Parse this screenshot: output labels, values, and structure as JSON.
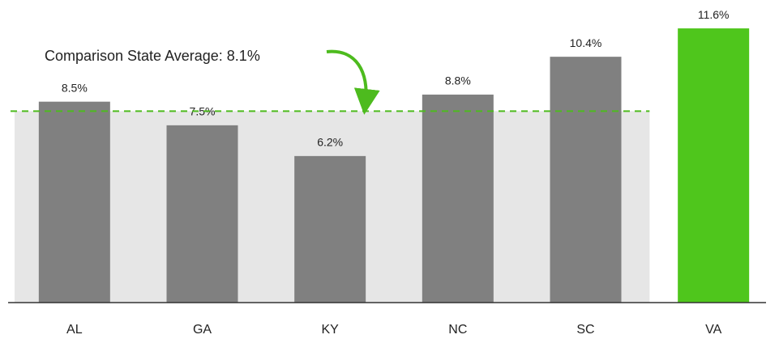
{
  "chart_data": {
    "type": "bar",
    "annotation": "Comparison State Average: 8.1%",
    "average": 8.1,
    "average_color": "#4dbb1e",
    "band_color": "#e6e6e6",
    "categories": [
      "AL",
      "GA",
      "KY",
      "NC",
      "SC",
      "VA"
    ],
    "values": [
      8.5,
      7.5,
      6.2,
      8.8,
      10.4,
      11.6
    ],
    "value_labels": [
      "8.5%",
      "7.5%",
      "6.2%",
      "8.8%",
      "10.4%",
      "11.6%"
    ],
    "colors": [
      "#808080",
      "#808080",
      "#808080",
      "#808080",
      "#808080",
      "#4fc61c"
    ],
    "ylim": [
      0,
      12
    ]
  }
}
